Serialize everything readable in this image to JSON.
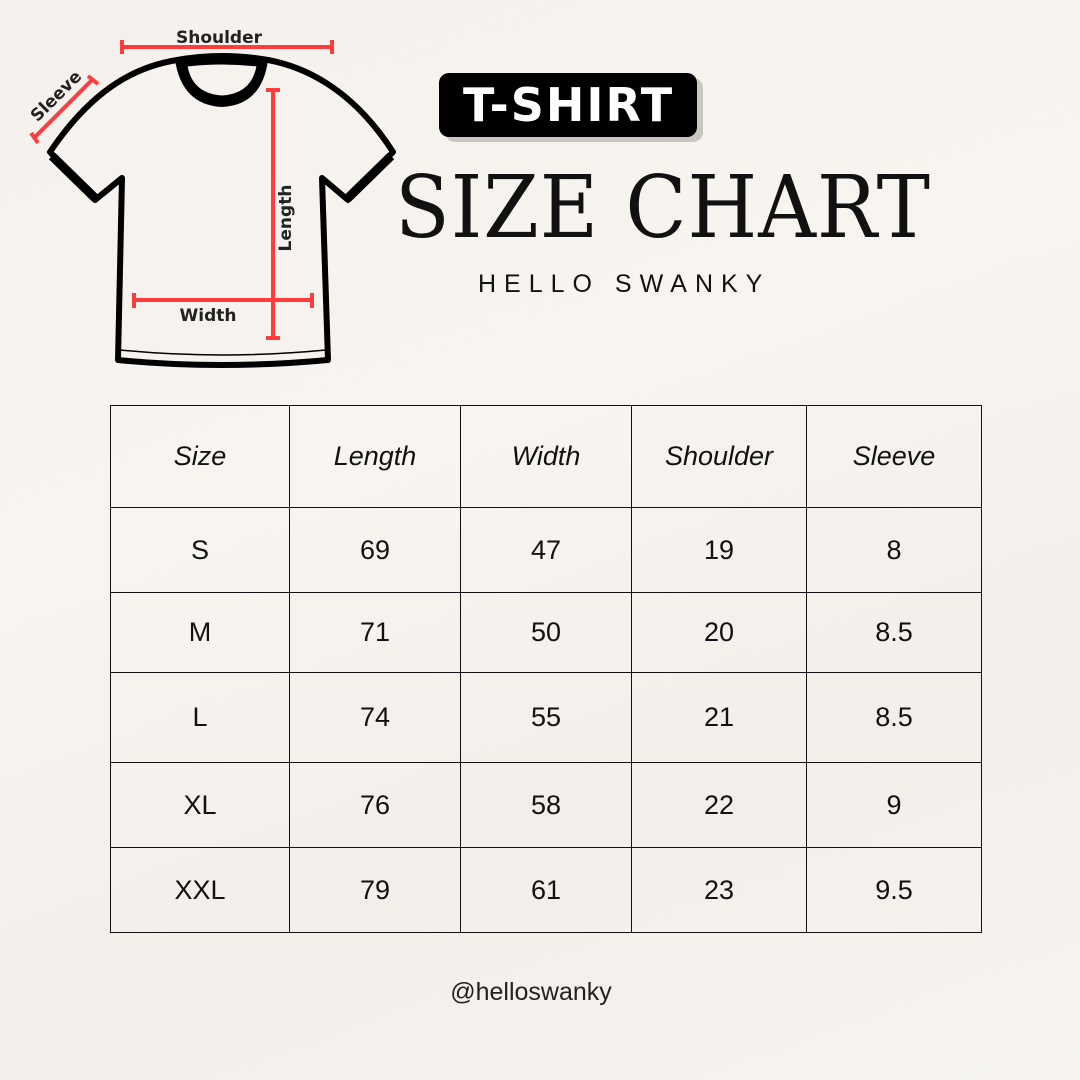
{
  "diagram": {
    "shoulder": "Shoulder",
    "sleeve": "Sleeve",
    "length": "Length",
    "width": "Width",
    "accent_color": "#ff3b3b"
  },
  "header": {
    "badge": "T-SHIRT",
    "title": "SIZE CHART",
    "brand": "HELLO SWANKY"
  },
  "table": {
    "columns": [
      "Size",
      "Length",
      "Width",
      "Shoulder",
      "Sleeve"
    ],
    "rows": [
      [
        "S",
        "69",
        "47",
        "19",
        "8"
      ],
      [
        "M",
        "71",
        "50",
        "20",
        "8.5"
      ],
      [
        "L",
        "74",
        "55",
        "21",
        "8.5"
      ],
      [
        "XL",
        "76",
        "58",
        "22",
        "9"
      ],
      [
        "XXL",
        "79",
        "61",
        "23",
        "9.5"
      ]
    ]
  },
  "footer": {
    "handle": "@helloswanky"
  }
}
